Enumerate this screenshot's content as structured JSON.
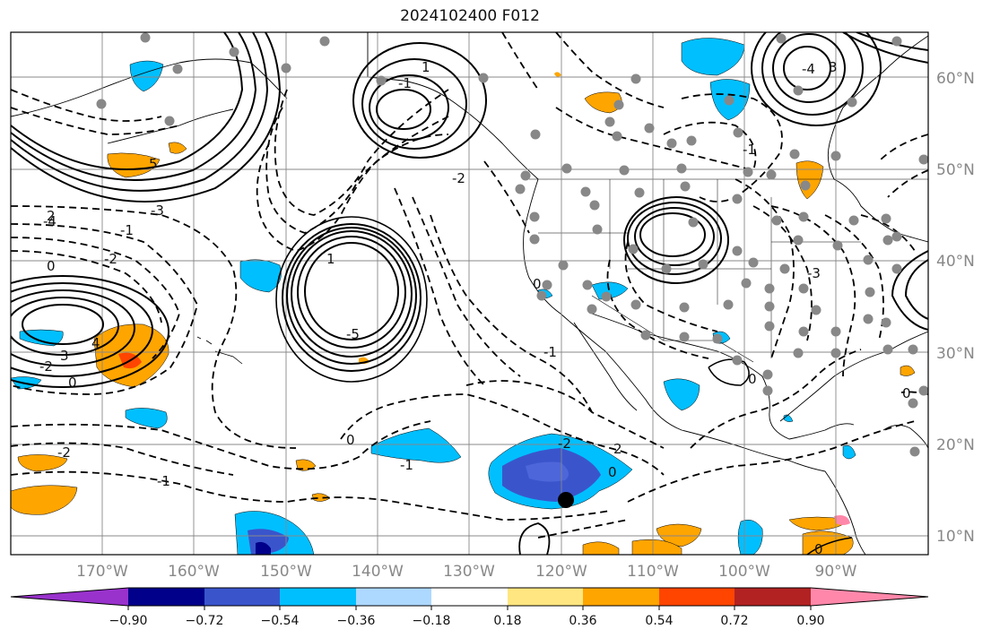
{
  "title": "2024102400 F012",
  "lat_labels": [
    "60°N",
    "50°N",
    "40°N",
    "30°N",
    "20°N",
    "10°N"
  ],
  "lon_labels": [
    "170°W",
    "160°W",
    "150°W",
    "140°W",
    "130°W",
    "120°W",
    "110°W",
    "100°W",
    "90°W"
  ],
  "colorbar": {
    "colors": [
      "#9932cc",
      "#00008b",
      "#3a55cc",
      "#00bfff",
      "#add8ff",
      "#ffffff",
      "#ffe680",
      "#ffa500",
      "#ff4500",
      "#b22222",
      "#ff88aa"
    ],
    "tick_labels": [
      "−0.90",
      "−0.72",
      "−0.54",
      "−0.36",
      "−0.18",
      "0.18",
      "0.36",
      "0.54",
      "0.72",
      "0.90"
    ]
  },
  "contour_labels": [
    "0",
    "-1",
    "-2",
    "2",
    "-3",
    "3",
    "-4",
    "4",
    "5",
    "-5",
    "1",
    "0",
    "-2",
    "-1",
    "0",
    "-2",
    "2",
    "0",
    "-1",
    "-3",
    "-1",
    "1",
    "-4",
    "-2",
    "3",
    "0",
    "-1",
    "0",
    "-2",
    "0",
    "-1",
    "0"
  ],
  "marker_color": "#000000",
  "station_color": "#888888"
}
